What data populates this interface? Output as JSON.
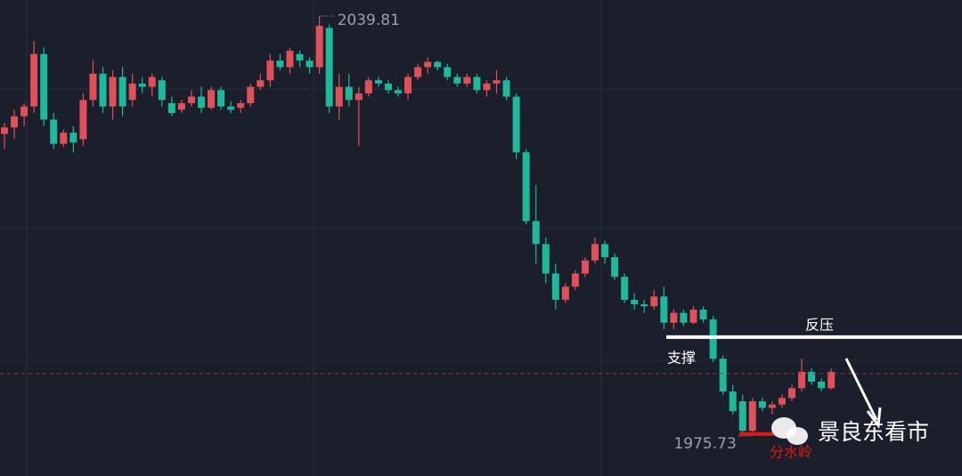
{
  "chart_data": {
    "type": "candlestick",
    "up_color": "#e0505a",
    "down_color": "#1fb89a",
    "ylim": [
      1969.6,
      2042.25
    ],
    "open": [
      2021.8,
      2022.8,
      2024.5,
      2026,
      2034,
      2024,
      2020.3,
      2022,
      2021,
      2027,
      2031,
      2026,
      2030.5,
      2027,
      2029.5,
      2029,
      2030,
      2026.5,
      2025.5,
      2026.5,
      2027.5,
      2025.8,
      2028.5,
      2026,
      2025.8,
      2026.5,
      2029,
      2030,
      2033,
      2032,
      2034,
      2033,
      2032,
      2038,
      2026,
      2029,
      2027,
      2028,
      2030,
      2029.5,
      2028.5,
      2028,
      2030.5,
      2032,
      2032.8,
      2032,
      2030.5,
      2029.5,
      2030.5,
      2028.5,
      2029.5,
      2030,
      2027.5,
      2019,
      2008.5,
      2005,
      2000.5,
      1996.5,
      1998.5,
      2000.5,
      2002.5,
      2005,
      2003,
      2000,
      1996.5,
      1995.8,
      1995.5,
      1997,
      1993,
      1994.5,
      1993,
      1995,
      1993.5,
      1987.5,
      1982.5,
      1981,
      1976.5,
      1981,
      1980,
      1980.5,
      1981.5,
      1983,
      1985.5,
      1984,
      1983
    ],
    "high": [
      2023.5,
      2025.5,
      2026.5,
      2036,
      2035,
      2025,
      2022.5,
      2023,
      2028,
      2033,
      2032,
      2031.5,
      2032,
      2031,
      2030.5,
      2031,
      2030.5,
      2027.5,
      2027,
      2028.5,
      2029,
      2029,
      2029,
      2026.8,
      2027,
      2029.5,
      2031,
      2034,
      2034,
      2035,
      2034.5,
      2033.5,
      2039.81,
      2038.5,
      2031,
      2031,
      2029,
      2030.5,
      2030.5,
      2030,
      2029,
      2031,
      2032.5,
      2033.5,
      2033,
      2032.5,
      2031,
      2031,
      2031,
      2030,
      2031.5,
      2030.5,
      2028,
      2019.5,
      2014,
      2006,
      2002,
      1999,
      2001,
      2003,
      2006,
      2005.5,
      2003.5,
      2000.5,
      1997.5,
      1996.5,
      1998,
      1998.5,
      1995,
      1995,
      1995.5,
      1995.5,
      1994,
      1988,
      1983.5,
      1982,
      1981.5,
      1981.5,
      1981,
      1982,
      1983.5,
      1987.5,
      1986,
      1984.5,
      1986
    ],
    "low": [
      2019.5,
      2021,
      2023,
      2025,
      2023,
      2019.5,
      2019.8,
      2019,
      2020,
      2026,
      2025,
      2024,
      2024.5,
      2026,
      2028,
      2027.5,
      2026,
      2024.5,
      2025,
      2026,
      2025,
      2025.5,
      2025.5,
      2025,
      2025,
      2026,
      2028.5,
      2029,
      2031.5,
      2031,
      2032,
      2031,
      2031,
      2025,
      2024,
      2026,
      2020,
      2027.5,
      2029,
      2028,
      2027.5,
      2027,
      2030,
      2031,
      2031.5,
      2030,
      2029,
      2029,
      2028,
      2027.5,
      2028,
      2027,
      2018,
      2008,
      2002,
      1999,
      1995,
      1996,
      1998,
      2000,
      2002,
      2002,
      1999.5,
      1996,
      1995,
      1994.5,
      1995,
      1992,
      1992,
      1992.5,
      1992.8,
      1993,
      1987,
      1982,
      1979,
      1976,
      1975.73,
      1979.5,
      1979,
      1980,
      1981,
      1982.5,
      1983.5,
      1982.5,
      1982.8
    ],
    "close": [
      2022.8,
      2024.5,
      2026,
      2034,
      2024,
      2020.3,
      2022,
      2020.5,
      2027,
      2031,
      2026,
      2030.5,
      2026,
      2029.5,
      2029,
      2030.5,
      2027,
      2025,
      2026.5,
      2027.5,
      2025.8,
      2028.5,
      2026,
      2025.5,
      2026.5,
      2029,
      2030,
      2033,
      2032,
      2034.5,
      2033,
      2032,
      2038.3,
      2026,
      2029,
      2027,
      2028,
      2030,
      2029.5,
      2028.5,
      2028,
      2030.5,
      2032,
      2032.8,
      2032,
      2030.5,
      2029.5,
      2030.5,
      2028.5,
      2029.5,
      2030,
      2027.5,
      2019,
      2008.5,
      2005,
      2000.5,
      1996.5,
      1998.5,
      2000.5,
      2002.5,
      2005,
      2003,
      2000,
      1996.5,
      1995.8,
      1995.5,
      1997,
      1993,
      1994.5,
      1993,
      1995,
      1993.5,
      1987.5,
      1982.5,
      1979.5,
      1976.5,
      1981,
      1980,
      1980.5,
      1981.5,
      1983,
      1985.5,
      1984,
      1983,
      1985.5
    ],
    "last_price_line": 1985.23,
    "levels": [
      {
        "labels": [
          "反压",
          "支撑"
        ],
        "value": 1990.8,
        "color": "#ffffff"
      },
      {
        "labels": [
          "分水岭"
        ],
        "value": 1976.0,
        "color": "#e01818"
      }
    ],
    "watermark": "景良东看市"
  }
}
